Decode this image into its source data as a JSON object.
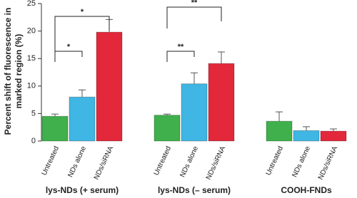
{
  "chart_data": {
    "type": "bar",
    "ylabel": [
      "Percent shift of fluorescence in",
      "marked region (%)"
    ],
    "categories": [
      "lys-NDs (+ serum)",
      "lys-NDs (– serum)",
      "COOH-FNDs"
    ],
    "series": [
      {
        "name": "Untreated",
        "color": "#3fb04b",
        "values": [
          4.5,
          4.7,
          3.6
        ],
        "errors": [
          0.4,
          0.2,
          1.7
        ]
      },
      {
        "name": "NDs alone",
        "color": "#3fb6e3",
        "values": [
          8.0,
          10.4,
          1.9
        ],
        "errors": [
          1.3,
          2.0,
          0.7
        ]
      },
      {
        "name": "NDs/siRNA",
        "color": "#e2283a",
        "values": [
          19.8,
          14.1,
          1.8
        ],
        "errors": [
          2.3,
          2.1,
          0.4
        ]
      }
    ],
    "annotations": [
      "*",
      "*",
      "**",
      "**"
    ],
    "ylim": [
      0,
      25
    ],
    "yticks": [
      0,
      5,
      10,
      15,
      20,
      25
    ]
  }
}
